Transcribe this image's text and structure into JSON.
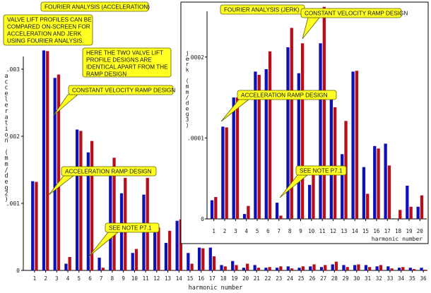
{
  "colors": {
    "blue": "#1010b8",
    "red": "#b80e1a",
    "note_fill": "#ffff22",
    "note_stroke": "#606000",
    "axis": "#000000",
    "text": "#1a1a1a"
  },
  "notes": {
    "main_title": "FOURIER ANALYSIS (ACCELERATION)",
    "intro": [
      "VALVE LIFT PROFILES CAN BE",
      "COMPARED ON-SCREEN FOR",
      "ACCELERATION AND JERK",
      "USING FOURIER ANALYSIS."
    ],
    "identical": [
      "HERE THE TWO VALVE LIFT",
      "PROFILE DESIGNS ARE",
      "IDENTICAL APART FROM THE",
      "RAMP DESIGN"
    ],
    "cvr_main": "CONSTANT VELOCITY RAMP DESIGN",
    "acc_main": "ACCELERATION RAMP DESIGN",
    "see_main": "SEE NOTE P7.1",
    "inset_title": "FOURIER ANALYSIS (JERK)",
    "cvr_inset": "CONSTANT VELOCITY RAMP DESIGN",
    "acc_inset": "ACCELERATION RAMP DESIGN",
    "see_inset": "SEE NOTE P7.1"
  },
  "chart_data": [
    {
      "type": "bar",
      "title": "FOURIER ANALYSIS (ACCELERATION)",
      "xlabel": "harmonic number",
      "ylabel": "acceleration (mm/deg2)",
      "ylim": [
        0,
        0.0034
      ],
      "yticks": [
        0,
        0.001,
        0.002,
        0.003
      ],
      "ytick_labels": [
        "0",
        ".001",
        ".002",
        ".003"
      ],
      "categories": [
        "1",
        "2",
        "3",
        "4",
        "5",
        "6",
        "7",
        "8",
        "9",
        "10",
        "11",
        "12",
        "13",
        "14",
        "15",
        "16",
        "17",
        "18",
        "19",
        "20",
        "21",
        "22",
        "23",
        "24",
        "25",
        "26",
        "27",
        "28",
        "29",
        "30",
        "31",
        "32",
        "33",
        "34",
        "35",
        "36"
      ],
      "series": [
        {
          "name": "CONSTANT VELOCITY RAMP DESIGN",
          "color": "blue",
          "values": [
            0.00133,
            0.00328,
            0.00287,
            0.0001,
            0.0021,
            0.00176,
            0.00019,
            0.00148,
            0.00115,
            0.00026,
            0.00113,
            0.00064,
            0.00041,
            0.00074,
            0.00026,
            0.00034,
            0.00034,
            8e-05,
            0.00014,
            4e-05,
            8e-05,
            4e-05,
            4e-05,
            6e-05,
            4e-05,
            6e-05,
            5e-05,
            9e-05,
            8e-05,
            8e-05,
            8e-05,
            6e-05,
            6e-05,
            4e-05,
            4e-05,
            4e-05
          ]
        },
        {
          "name": "ACCELERATION RAMP DESIGN",
          "color": "red",
          "values": [
            0.00132,
            0.00327,
            0.00292,
            0.0002,
            0.00208,
            0.00193,
            4e-05,
            0.00168,
            0.00138,
            0.00032,
            0.00138,
            0.00064,
            0.00059,
            0.00076,
            0.0001,
            0.00033,
            0.00021,
            6e-05,
            8e-05,
            0.0001,
            4e-05,
            5e-05,
            6e-05,
            3e-05,
            6e-05,
            9e-05,
            8e-05,
            0.00013,
            5e-05,
            9e-05,
            5e-05,
            8e-05,
            3e-05,
            5e-05,
            2e-05,
            1e-05
          ]
        }
      ]
    },
    {
      "type": "bar",
      "title": "FOURIER ANALYSIS (JERK)",
      "xlabel": "harmonic number",
      "ylabel": "jerk (mm/deg3)",
      "ylim": [
        0,
        0.00026
      ],
      "yticks": [
        0,
        0.0001,
        0.0002
      ],
      "ytick_labels": [
        "0",
        ".0001",
        ".0002"
      ],
      "categories": [
        "1",
        "2",
        "3",
        "4",
        "5",
        "6",
        "7",
        "8",
        "9",
        "10",
        "11",
        "12",
        "13",
        "14",
        "15",
        "16",
        "17",
        "18",
        "19",
        "20"
      ],
      "series": [
        {
          "name": "CONSTANT VELOCITY RAMP DESIGN",
          "color": "blue",
          "values": [
            2.3e-05,
            0.000114,
            0.00015,
            6e-06,
            0.000182,
            0.000185,
            2e-05,
            0.000212,
            0.00018,
            4.2e-05,
            0.000217,
            0.000151,
            8e-05,
            0.000182,
            6.4e-05,
            9e-05,
            9.3e-05,
            0.0,
            4.1e-05,
            1.5e-05
          ]
        },
        {
          "name": "ACCELERATION RAMP DESIGN",
          "color": "red",
          "values": [
            2.7e-05,
            0.000113,
            0.00015,
            1.6e-05,
            0.000178,
            0.000207,
            4e-06,
            0.000236,
            0.000217,
            6.3e-05,
            0.000262,
            0.000138,
            0.000121,
            0.000183,
            3.1e-05,
            8.7e-05,
            6.6e-05,
            1.1e-05,
            1.5e-05,
            2.9e-05
          ]
        }
      ]
    }
  ]
}
